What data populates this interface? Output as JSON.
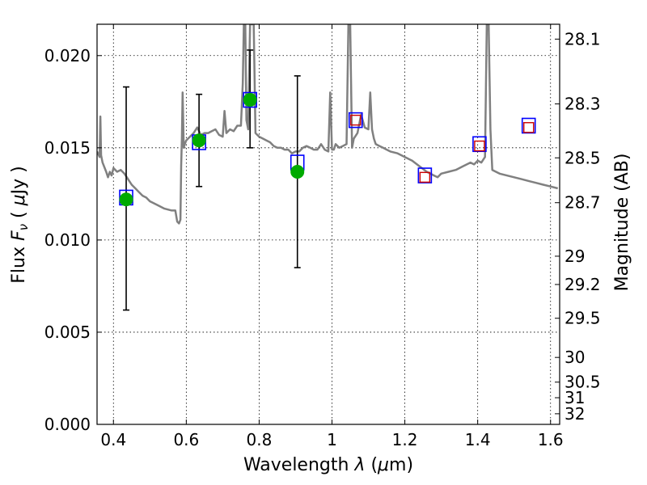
{
  "chart_data": {
    "type": "scatter",
    "xlabel": "Wavelength  λ (μm)",
    "ylabel": "Flux  F_ν  ( μJy )",
    "ylabel_right": "Magnitude (AB)",
    "xlim": [
      0.355,
      1.625
    ],
    "ylim": [
      0.0,
      0.0217
    ],
    "grid": true,
    "x_ticks": [
      0.4,
      0.6,
      0.8,
      1.0,
      1.2,
      1.4,
      1.6
    ],
    "x_tick_labels": [
      "0.4",
      "0.6",
      "0.8",
      "1",
      "1.2",
      "1.4",
      "1.6"
    ],
    "y_ticks": [
      0.0,
      0.005,
      0.01,
      0.015,
      0.02
    ],
    "y_tick_labels": [
      "0.000",
      "0.005",
      "0.010",
      "0.015",
      "0.020"
    ],
    "right_ticks": [
      {
        "mag": 28.1,
        "label": "28.1"
      },
      {
        "mag": 28.3,
        "label": "28.3"
      },
      {
        "mag": 28.5,
        "label": "28.5"
      },
      {
        "mag": 28.7,
        "label": "28.7"
      },
      {
        "mag": 29.0,
        "label": "29"
      },
      {
        "mag": 29.2,
        "label": "29.2"
      },
      {
        "mag": 29.5,
        "label": "29.5"
      },
      {
        "mag": 30.0,
        "label": "30"
      },
      {
        "mag": 30.5,
        "label": "30.5"
      },
      {
        "mag": 31.0,
        "label": "31"
      },
      {
        "mag": 32.0,
        "label": "32"
      }
    ],
    "series": [
      {
        "kind": "model-spectrum",
        "color": "#808080",
        "x": [
          0.355,
          0.362,
          0.364,
          0.366,
          0.37,
          0.38,
          0.385,
          0.39,
          0.395,
          0.4,
          0.41,
          0.42,
          0.43,
          0.44,
          0.45,
          0.46,
          0.47,
          0.48,
          0.49,
          0.5,
          0.52,
          0.54,
          0.56,
          0.57,
          0.575,
          0.58,
          0.584,
          0.586,
          0.588,
          0.59,
          0.593,
          0.596,
          0.6,
          0.61,
          0.62,
          0.63,
          0.64,
          0.65,
          0.66,
          0.67,
          0.68,
          0.69,
          0.7,
          0.705,
          0.71,
          0.72,
          0.73,
          0.74,
          0.75,
          0.755,
          0.758,
          0.762,
          0.765,
          0.77,
          0.775,
          0.78,
          0.785,
          0.79,
          0.8,
          0.81,
          0.82,
          0.83,
          0.84,
          0.85,
          0.86,
          0.87,
          0.88,
          0.89,
          0.9,
          0.91,
          0.92,
          0.93,
          0.94,
          0.95,
          0.96,
          0.97,
          0.98,
          0.99,
          0.995,
          1.0,
          1.005,
          1.01,
          1.02,
          1.03,
          1.04,
          1.045,
          1.05,
          1.055,
          1.06,
          1.07,
          1.08,
          1.09,
          1.1,
          1.105,
          1.11,
          1.115,
          1.12,
          1.13,
          1.14,
          1.15,
          1.16,
          1.18,
          1.2,
          1.22,
          1.24,
          1.26,
          1.27,
          1.28,
          1.29,
          1.3,
          1.32,
          1.34,
          1.36,
          1.38,
          1.39,
          1.4,
          1.41,
          1.42,
          1.425,
          1.43,
          1.435,
          1.44,
          1.45,
          1.46,
          1.48,
          1.5,
          1.52,
          1.54,
          1.56,
          1.58,
          1.6,
          1.62
        ],
        "y": [
          0.0148,
          0.0145,
          0.0167,
          0.0146,
          0.0142,
          0.0137,
          0.0134,
          0.0137,
          0.0135,
          0.0139,
          0.0137,
          0.0138,
          0.0136,
          0.0133,
          0.013,
          0.0128,
          0.0126,
          0.0124,
          0.0123,
          0.0121,
          0.0119,
          0.0117,
          0.0116,
          0.0116,
          0.011,
          0.0109,
          0.0111,
          0.014,
          0.0155,
          0.018,
          0.015,
          0.0152,
          0.0154,
          0.0156,
          0.0158,
          0.0161,
          0.0157,
          0.0158,
          0.0158,
          0.0159,
          0.016,
          0.0157,
          0.0156,
          0.017,
          0.0158,
          0.016,
          0.0159,
          0.0162,
          0.0162,
          0.0185,
          0.0217,
          0.0217,
          0.0165,
          0.016,
          0.0217,
          0.0217,
          0.0217,
          0.0158,
          0.0156,
          0.0155,
          0.0154,
          0.0153,
          0.0151,
          0.015,
          0.015,
          0.0149,
          0.0149,
          0.0147,
          0.0148,
          0.0148,
          0.015,
          0.0151,
          0.015,
          0.0149,
          0.0149,
          0.0152,
          0.0149,
          0.0148,
          0.018,
          0.0149,
          0.0149,
          0.0152,
          0.015,
          0.0151,
          0.0152,
          0.0217,
          0.0217,
          0.015,
          0.0155,
          0.0158,
          0.0168,
          0.0161,
          0.016,
          0.018,
          0.016,
          0.0155,
          0.0152,
          0.0151,
          0.015,
          0.0149,
          0.0148,
          0.0147,
          0.0145,
          0.0143,
          0.014,
          0.0137,
          0.0136,
          0.0135,
          0.0134,
          0.0136,
          0.0137,
          0.0138,
          0.014,
          0.0142,
          0.0141,
          0.0143,
          0.0142,
          0.0145,
          0.0217,
          0.0217,
          0.016,
          0.0138,
          0.0137,
          0.0136,
          0.0135,
          0.0134,
          0.0133,
          0.0132,
          0.0131,
          0.013,
          0.0129,
          0.0128
        ]
      },
      {
        "kind": "model-photometry",
        "marker": "blue-square",
        "color": "#0000ff",
        "x": [
          0.435,
          0.635,
          0.775,
          0.905,
          1.065,
          1.255,
          1.405,
          1.54
        ],
        "y": [
          0.0123,
          0.0153,
          0.0176,
          0.0142,
          0.0165,
          0.0135,
          0.0152,
          0.0162
        ]
      },
      {
        "kind": "upper-limit",
        "marker": "red-square",
        "color": "#cc0000",
        "x": [
          1.065,
          1.255,
          1.405,
          1.54
        ],
        "y": [
          0.0165,
          0.0134,
          0.0151,
          0.0161
        ]
      },
      {
        "kind": "observed",
        "marker": "green-circle",
        "color": "#00aa00",
        "x": [
          0.435,
          0.635,
          0.775,
          0.905
        ],
        "y": [
          0.0122,
          0.0154,
          0.0176,
          0.0137
        ],
        "err_low": [
          0.0062,
          0.0129,
          0.015,
          0.0085
        ],
        "err_high": [
          0.0183,
          0.0179,
          0.0203,
          0.0189
        ]
      }
    ]
  }
}
